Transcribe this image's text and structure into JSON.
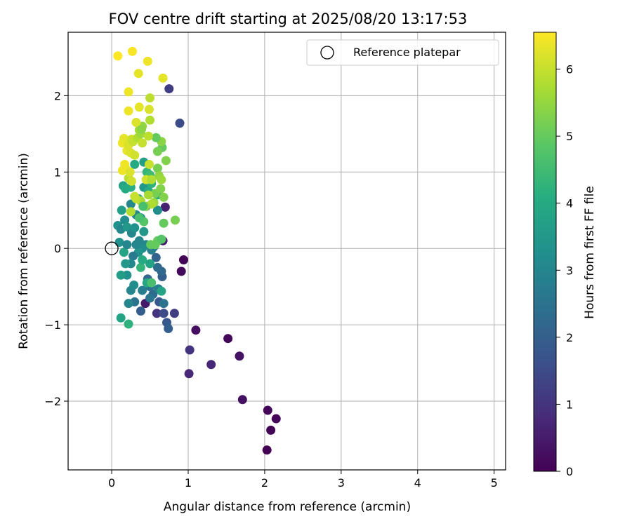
{
  "chart_data": {
    "type": "scatter",
    "title": "FOV centre drift starting at 2025/08/20 13:17:53",
    "xlabel": "Angular distance from reference (arcmin)",
    "ylabel": "Rotation from reference (arcmin)",
    "xlim": [
      -0.57,
      5.15
    ],
    "ylim": [
      -2.9,
      2.83
    ],
    "xticks": [
      0,
      1,
      2,
      3,
      4,
      5
    ],
    "yticks": [
      -2,
      -1,
      0,
      1,
      2
    ],
    "grid": true,
    "legend": {
      "placement": "top-right",
      "entries": [
        "Reference platepar"
      ]
    },
    "reference_point": {
      "name": "Reference platepar",
      "x": 0,
      "y": 0
    },
    "colorbar": {
      "label": "Hours from first FF file",
      "range": [
        0,
        6.55
      ],
      "ticks": [
        0,
        1,
        2,
        3,
        4,
        5,
        6
      ],
      "colormap": "viridis"
    },
    "series": [
      {
        "note_color_variable": "h",
        "points": [
          {
            "x": 2.03,
            "y": -2.64,
            "h": 0.0
          },
          {
            "x": 2.08,
            "y": -2.38,
            "h": 0.05
          },
          {
            "x": 2.15,
            "y": -2.23,
            "h": 0.08
          },
          {
            "x": 2.04,
            "y": -2.12,
            "h": 0.1
          },
          {
            "x": 1.71,
            "y": -1.98,
            "h": 0.3
          },
          {
            "x": 1.67,
            "y": -1.41,
            "h": 0.35
          },
          {
            "x": 1.52,
            "y": -1.18,
            "h": 0.15
          },
          {
            "x": 1.1,
            "y": -1.07,
            "h": 0.25
          },
          {
            "x": 0.94,
            "y": -0.15,
            "h": 0.05
          },
          {
            "x": 0.91,
            "y": -0.3,
            "h": 0.15
          },
          {
            "x": 1.01,
            "y": -1.64,
            "h": 0.75
          },
          {
            "x": 1.3,
            "y": -1.52,
            "h": 0.75
          },
          {
            "x": 1.02,
            "y": -1.33,
            "h": 1.0
          },
          {
            "x": 0.82,
            "y": -0.85,
            "h": 1.2
          },
          {
            "x": 0.75,
            "y": 2.09,
            "h": 1.2
          },
          {
            "x": 0.89,
            "y": 1.64,
            "h": 1.5
          },
          {
            "x": 0.7,
            "y": 0.54,
            "h": 0.6
          },
          {
            "x": 0.67,
            "y": 0.1,
            "h": 0.5
          },
          {
            "x": 0.44,
            "y": -0.72,
            "h": 0.5
          },
          {
            "x": 0.59,
            "y": -0.85,
            "h": 1.0
          },
          {
            "x": 0.72,
            "y": -0.97,
            "h": 1.8
          },
          {
            "x": 0.74,
            "y": -1.05,
            "h": 2.0
          },
          {
            "x": 0.68,
            "y": -0.85,
            "h": 1.5
          },
          {
            "x": 0.62,
            "y": -0.7,
            "h": 1.8
          },
          {
            "x": 0.54,
            "y": -0.6,
            "h": 2.3
          },
          {
            "x": 0.5,
            "y": -0.5,
            "h": 2.5
          },
          {
            "x": 0.47,
            "y": -0.4,
            "h": 2.2
          },
          {
            "x": 0.38,
            "y": -0.82,
            "h": 2.0
          },
          {
            "x": 0.3,
            "y": -0.7,
            "h": 2.5
          },
          {
            "x": 0.25,
            "y": -0.55,
            "h": 3.0
          },
          {
            "x": 0.29,
            "y": -0.48,
            "h": 3.2
          },
          {
            "x": 0.66,
            "y": -0.37,
            "h": 2.0
          },
          {
            "x": 0.65,
            "y": -0.3,
            "h": 2.2
          },
          {
            "x": 0.6,
            "y": -0.25,
            "h": 2.3
          },
          {
            "x": 0.58,
            "y": -0.12,
            "h": 2.1
          },
          {
            "x": 0.55,
            "y": 0.02,
            "h": 2.5
          },
          {
            "x": 0.52,
            "y": -0.02,
            "h": 2.8
          },
          {
            "x": 0.45,
            "y": 0.05,
            "h": 3.0
          },
          {
            "x": 0.4,
            "y": 0.0,
            "h": 3.2
          },
          {
            "x": 0.35,
            "y": -0.05,
            "h": 3.4
          },
          {
            "x": 0.32,
            "y": 0.05,
            "h": 3.0
          },
          {
            "x": 0.28,
            "y": -0.1,
            "h": 2.7
          },
          {
            "x": 0.25,
            "y": -0.2,
            "h": 3.1
          },
          {
            "x": 0.2,
            "y": -0.35,
            "h": 3.3
          },
          {
            "x": 0.18,
            "y": -0.2,
            "h": 3.5
          },
          {
            "x": 0.12,
            "y": -0.35,
            "h": 3.6
          },
          {
            "x": 0.1,
            "y": 0.08,
            "h": 3.3
          },
          {
            "x": 0.16,
            "y": -0.05,
            "h": 3.8
          },
          {
            "x": 0.2,
            "y": 0.05,
            "h": 3.0
          },
          {
            "x": 0.22,
            "y": -0.72,
            "h": 3.0
          },
          {
            "x": 0.12,
            "y": -0.91,
            "h": 3.8
          },
          {
            "x": 0.22,
            "y": -0.99,
            "h": 4.2
          },
          {
            "x": 0.08,
            "y": 0.3,
            "h": 3.3
          },
          {
            "x": 0.12,
            "y": 0.25,
            "h": 3.0
          },
          {
            "x": 0.17,
            "y": 0.37,
            "h": 3.2
          },
          {
            "x": 0.2,
            "y": 0.28,
            "h": 3.5
          },
          {
            "x": 0.26,
            "y": 0.2,
            "h": 3.0
          },
          {
            "x": 0.3,
            "y": 0.27,
            "h": 3.3
          },
          {
            "x": 0.36,
            "y": 0.1,
            "h": 3.0
          },
          {
            "x": 0.42,
            "y": 0.22,
            "h": 3.5
          },
          {
            "x": 0.13,
            "y": 0.5,
            "h": 3.7
          },
          {
            "x": 0.25,
            "y": 0.58,
            "h": 3.0
          },
          {
            "x": 0.32,
            "y": 0.44,
            "h": 3.0
          },
          {
            "x": 0.38,
            "y": 0.4,
            "h": 3.2
          },
          {
            "x": 0.45,
            "y": 0.55,
            "h": 3.3
          },
          {
            "x": 0.55,
            "y": 0.6,
            "h": 3.3
          },
          {
            "x": 0.6,
            "y": 0.5,
            "h": 3.2
          },
          {
            "x": 0.15,
            "y": 0.82,
            "h": 3.8
          },
          {
            "x": 0.18,
            "y": 0.78,
            "h": 4.0
          },
          {
            "x": 0.25,
            "y": 0.8,
            "h": 4.1
          },
          {
            "x": 0.35,
            "y": 0.65,
            "h": 3.8
          },
          {
            "x": 0.42,
            "y": 0.8,
            "h": 3.5
          },
          {
            "x": 0.48,
            "y": 0.75,
            "h": 4.0
          },
          {
            "x": 0.52,
            "y": 0.85,
            "h": 4.2
          },
          {
            "x": 0.6,
            "y": 0.7,
            "h": 4.0
          },
          {
            "x": 0.3,
            "y": 1.1,
            "h": 4.0
          },
          {
            "x": 0.42,
            "y": 1.13,
            "h": 3.7
          },
          {
            "x": 0.46,
            "y": 1.0,
            "h": 4.3
          },
          {
            "x": 0.5,
            "y": 0.96,
            "h": 4.5
          },
          {
            "x": 0.4,
            "y": -0.55,
            "h": 2.8
          },
          {
            "x": 0.5,
            "y": -0.65,
            "h": 2.6
          },
          {
            "x": 0.68,
            "y": -0.72,
            "h": 2.5
          },
          {
            "x": 0.61,
            "y": -0.53,
            "h": 2.8
          },
          {
            "x": 0.65,
            "y": -0.56,
            "h": 3.8
          },
          {
            "x": 0.46,
            "y": -0.45,
            "h": 3.9
          },
          {
            "x": 0.5,
            "y": -0.2,
            "h": 3.8
          },
          {
            "x": 0.38,
            "y": -0.25,
            "h": 4.3
          },
          {
            "x": 0.4,
            "y": -0.15,
            "h": 4.0
          },
          {
            "x": 0.52,
            "y": -0.45,
            "h": 4.6
          },
          {
            "x": 0.6,
            "y": 0.1,
            "h": 5.0
          },
          {
            "x": 0.51,
            "y": 0.05,
            "h": 5.0
          },
          {
            "x": 0.57,
            "y": 0.05,
            "h": 5.0
          },
          {
            "x": 0.65,
            "y": 0.12,
            "h": 4.8
          },
          {
            "x": 0.68,
            "y": 0.33,
            "h": 5.0
          },
          {
            "x": 0.83,
            "y": 0.37,
            "h": 5.2
          },
          {
            "x": 0.6,
            "y": 1.05,
            "h": 5.2
          },
          {
            "x": 0.66,
            "y": 1.32,
            "h": 5.0
          },
          {
            "x": 0.71,
            "y": 1.15,
            "h": 5.3
          },
          {
            "x": 0.65,
            "y": 1.4,
            "h": 5.4
          },
          {
            "x": 0.6,
            "y": 1.27,
            "h": 5.2
          },
          {
            "x": 0.58,
            "y": 1.45,
            "h": 5.0
          },
          {
            "x": 0.57,
            "y": 0.72,
            "h": 5.2
          },
          {
            "x": 0.64,
            "y": 0.78,
            "h": 5.3
          },
          {
            "x": 0.68,
            "y": 0.67,
            "h": 5.3
          },
          {
            "x": 0.55,
            "y": 0.6,
            "h": 5.6
          },
          {
            "x": 0.52,
            "y": 0.58,
            "h": 5.8
          },
          {
            "x": 0.48,
            "y": 0.7,
            "h": 5.7
          },
          {
            "x": 0.44,
            "y": 0.55,
            "h": 5.5
          },
          {
            "x": 0.62,
            "y": 0.95,
            "h": 5.5
          },
          {
            "x": 0.65,
            "y": 0.9,
            "h": 5.6
          },
          {
            "x": 0.38,
            "y": 0.62,
            "h": 5.7
          },
          {
            "x": 0.32,
            "y": 0.65,
            "h": 5.9
          },
          {
            "x": 0.3,
            "y": 0.68,
            "h": 6.0
          },
          {
            "x": 0.25,
            "y": 0.48,
            "h": 5.8
          },
          {
            "x": 0.22,
            "y": 0.92,
            "h": 5.9
          },
          {
            "x": 0.26,
            "y": 0.88,
            "h": 6.1
          },
          {
            "x": 0.18,
            "y": 1.05,
            "h": 6.3
          },
          {
            "x": 0.14,
            "y": 1.02,
            "h": 6.4
          },
          {
            "x": 0.17,
            "y": 1.1,
            "h": 6.4
          },
          {
            "x": 0.24,
            "y": 1.0,
            "h": 6.2
          },
          {
            "x": 0.2,
            "y": 1.28,
            "h": 6.3
          },
          {
            "x": 0.25,
            "y": 1.25,
            "h": 6.2
          },
          {
            "x": 0.3,
            "y": 1.22,
            "h": 6.1
          },
          {
            "x": 0.14,
            "y": 1.38,
            "h": 6.4
          },
          {
            "x": 0.16,
            "y": 1.44,
            "h": 6.3
          },
          {
            "x": 0.22,
            "y": 1.35,
            "h": 6.2
          },
          {
            "x": 0.26,
            "y": 1.43,
            "h": 6.1
          },
          {
            "x": 0.28,
            "y": 1.4,
            "h": 6.0
          },
          {
            "x": 0.34,
            "y": 1.45,
            "h": 5.8
          },
          {
            "x": 0.36,
            "y": 1.55,
            "h": 5.7
          },
          {
            "x": 0.38,
            "y": 1.5,
            "h": 5.6
          },
          {
            "x": 0.4,
            "y": 1.6,
            "h": 5.5
          },
          {
            "x": 0.4,
            "y": 1.38,
            "h": 6.0
          },
          {
            "x": 0.32,
            "y": 1.65,
            "h": 6.2
          },
          {
            "x": 0.48,
            "y": 1.47,
            "h": 5.9
          },
          {
            "x": 0.5,
            "y": 1.68,
            "h": 5.8
          },
          {
            "x": 0.49,
            "y": 1.1,
            "h": 6.0
          },
          {
            "x": 0.45,
            "y": 0.9,
            "h": 6.1
          },
          {
            "x": 0.52,
            "y": 0.9,
            "h": 5.8
          },
          {
            "x": 0.22,
            "y": 1.8,
            "h": 6.4
          },
          {
            "x": 0.36,
            "y": 1.85,
            "h": 6.3
          },
          {
            "x": 0.49,
            "y": 1.82,
            "h": 6.2
          },
          {
            "x": 0.5,
            "y": 1.97,
            "h": 5.9
          },
          {
            "x": 0.22,
            "y": 2.05,
            "h": 6.4
          },
          {
            "x": 0.35,
            "y": 2.29,
            "h": 6.3
          },
          {
            "x": 0.67,
            "y": 2.23,
            "h": 6.3
          },
          {
            "x": 0.08,
            "y": 2.52,
            "h": 6.55
          },
          {
            "x": 0.27,
            "y": 2.58,
            "h": 6.5
          },
          {
            "x": 0.47,
            "y": 2.45,
            "h": 6.4
          },
          {
            "x": 0.39,
            "y": 1.56,
            "h": 5.4
          },
          {
            "x": 0.41,
            "y": 0.55,
            "h": 4.6
          },
          {
            "x": 0.42,
            "y": 0.35,
            "h": 4.8
          },
          {
            "x": 0.36,
            "y": 0.4,
            "h": 4.6
          }
        ]
      }
    ]
  }
}
